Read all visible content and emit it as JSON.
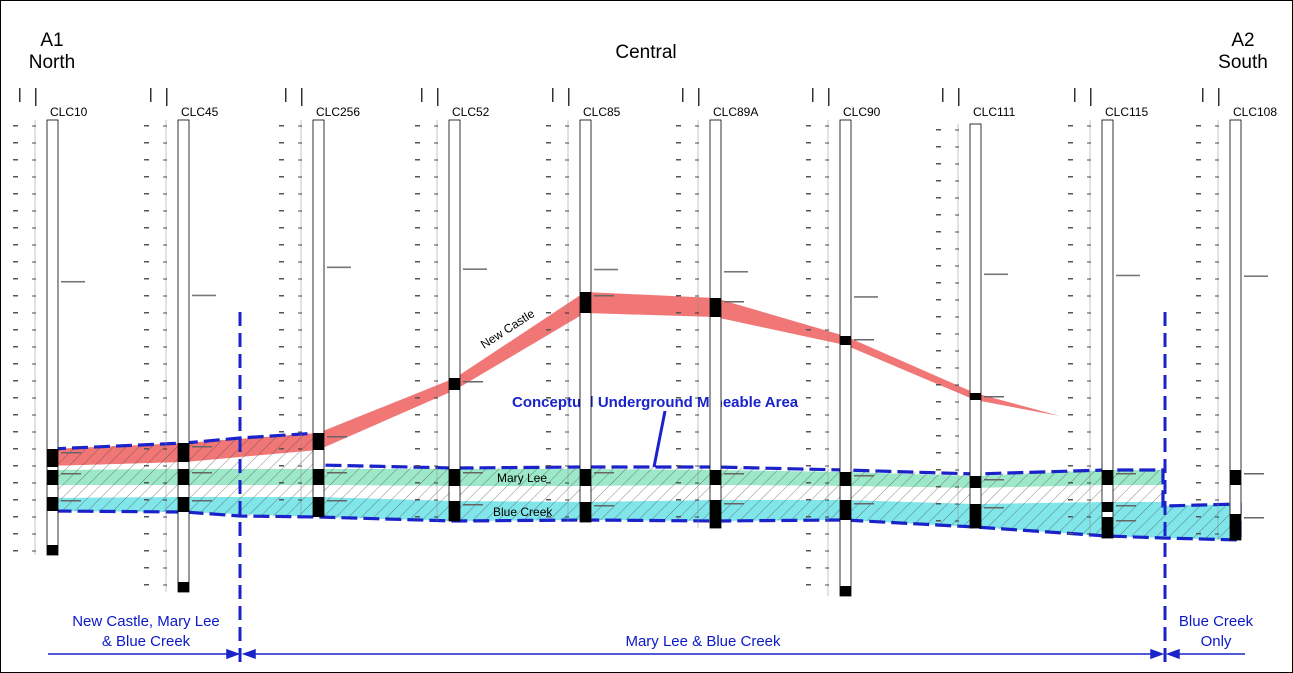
{
  "headers": {
    "left_a": "A1",
    "left_b": "North",
    "center": "Central",
    "right_a": "A2",
    "right_b": "South"
  },
  "holes": [
    "CLC10",
    "CLC45",
    "CLC256",
    "CLC52",
    "CLC85",
    "CLC89A",
    "CLC90",
    "CLC111",
    "CLC115",
    "CLC108"
  ],
  "seams": {
    "new_castle": "New Castle",
    "mary_lee": "Mary Lee",
    "blue_creek": "Blue Creek"
  },
  "area_label": "Conceptual Underground Mineable Area",
  "zones": {
    "left_line1": "New Castle, Mary Lee",
    "left_line2": "& Blue Creek",
    "middle": "Mary Lee & Blue Creek",
    "right_line1": "Blue Creek",
    "right_line2": "Only"
  },
  "colors": {
    "new_castle_fill": "#f07070",
    "mary_lee_fill": "#9de8c8",
    "blue_creek_fill": "#80e6ea",
    "boundary": "#1a23c9",
    "zone_text": "#0b18c8"
  }
}
